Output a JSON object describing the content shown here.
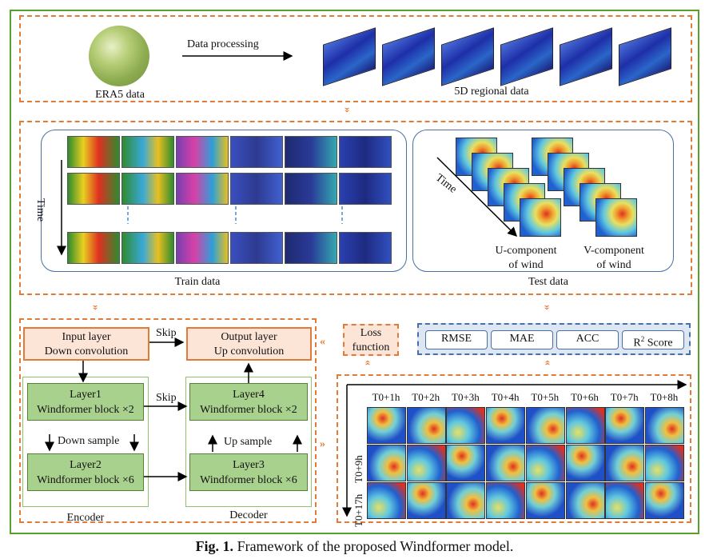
{
  "top": {
    "process_label": "Data processing",
    "source_label": "ERA5 data",
    "regional_label": "5D regional data"
  },
  "train": {
    "time_label": "Time",
    "caption": "Train data"
  },
  "test": {
    "time_label": "Time",
    "u_label_1": "U-component",
    "u_label_2": "of wind",
    "v_label_1": "V-component",
    "v_label_2": "of wind",
    "caption": "Test data"
  },
  "model": {
    "input_1": "Input layer",
    "input_2": "Down convolution",
    "output_1": "Output layer",
    "output_2": "Up convolution",
    "skip_top": "Skip",
    "skip_mid": "Skip",
    "layer1_1": "Layer1",
    "layer1_2": "Windformer block ×2",
    "layer2_1": "Layer2",
    "layer2_2": "Windformer block ×6",
    "layer3_1": "Layer3",
    "layer3_2": "Windformer block ×6",
    "layer4_1": "Layer4",
    "layer4_2": "Windformer block ×2",
    "down_sample": "Down sample",
    "up_sample": "Up sample",
    "encoder": "Encoder",
    "decoder": "Decoder"
  },
  "loss": {
    "line1": "Loss",
    "line2": "function"
  },
  "metrics": [
    "RMSE",
    "MAE",
    "ACC"
  ],
  "r2": {
    "base": "R",
    "sup": "2",
    "rest": " Score"
  },
  "forecast": {
    "col_labels": [
      "T0+1h",
      "T0+2h",
      "T0+3h",
      "T0+4h",
      "T0+5h",
      "T0+6h",
      "T0+7h",
      "T0+8h"
    ],
    "row_labels": [
      "T0+9h",
      "T0+17h"
    ]
  },
  "caption": {
    "prefix": "Fig. 1.",
    "text": " Framework of the proposed Windformer model."
  },
  "colors": {
    "accent_orange": "#e07b39",
    "frame_green": "#5aa02c",
    "metric_blue": "#4a6fa5",
    "layer_green": "#a9d18e",
    "layer_orange": "#fce5d6"
  }
}
